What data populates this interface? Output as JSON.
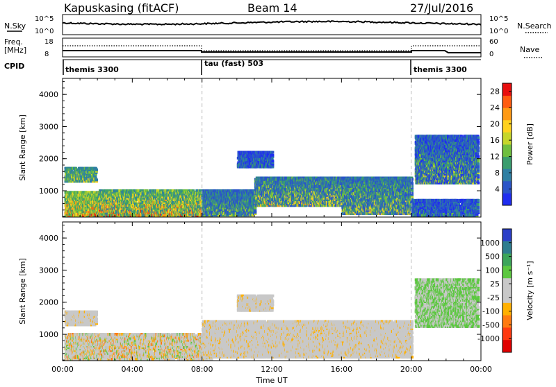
{
  "header": {
    "station": "Kapuskasing (fitACF)",
    "beam": "Beam 14",
    "date": "27/Jul/2016"
  },
  "top_panels": {
    "nsky_label": "N.Sky",
    "nsky_ticks": [
      "10^5",
      "10^0"
    ],
    "nsearch_label": "N.Search",
    "nsearch_ticks": [
      "10^5",
      "10^0"
    ],
    "freq_label_1": "Freq.",
    "freq_label_2": "[MHz]",
    "freq_ticks": [
      "18",
      "8"
    ],
    "nave_label": "Nave",
    "nave_ticks": [
      "60",
      "0"
    ],
    "cpid_label": "CPID",
    "cpid_segments": [
      {
        "label": "themis 3300",
        "start": 0,
        "end": 8
      },
      {
        "label": "tau (fast) 503",
        "start": 8,
        "end": 20
      },
      {
        "label": "themis 3300",
        "start": 20,
        "end": 24
      }
    ]
  },
  "chart_data": [
    {
      "type": "heatmap",
      "name": "power",
      "ylabel": "Slant Range [km]",
      "xlabel": "Time UT",
      "x_ticks": [
        "00:00",
        "04:00",
        "08:00",
        "12:00",
        "16:00",
        "20:00",
        "00:00"
      ],
      "xlim": [
        0,
        24
      ],
      "ylim": [
        180,
        4500
      ],
      "y_ticks": [
        1000,
        2000,
        3000,
        4000
      ],
      "colorbar": {
        "label": "Power [dB]",
        "ticks": [
          4,
          8,
          12,
          16,
          20,
          24,
          28
        ],
        "range": [
          0,
          30
        ],
        "colors": [
          "#1f2df0",
          "#2a55c8",
          "#2f7fa3",
          "#3a9d6e",
          "#6fbf3f",
          "#c6d62b",
          "#ffd21e",
          "#ff9a14",
          "#ff5c10",
          "#e80e0e"
        ]
      },
      "regions": [
        {
          "t0": 0.1,
          "t1": 2.0,
          "r0": 180,
          "r1": 950,
          "lo": 10,
          "hi": 30
        },
        {
          "t0": 0.1,
          "t1": 1.9,
          "r0": 1250,
          "r1": 1700,
          "lo": 6,
          "hi": 22
        },
        {
          "t0": 2.0,
          "t1": 8.5,
          "r0": 180,
          "r1": 1000,
          "lo": 8,
          "hi": 30
        },
        {
          "t0": 8.0,
          "t1": 11.0,
          "r0": 200,
          "r1": 1000,
          "lo": 4,
          "hi": 18
        },
        {
          "t0": 11.0,
          "t1": 16.0,
          "r0": 500,
          "r1": 1400,
          "lo": 4,
          "hi": 24
        },
        {
          "t0": 16.0,
          "t1": 20.0,
          "r0": 250,
          "r1": 1400,
          "lo": 4,
          "hi": 22
        },
        {
          "t0": 10.0,
          "t1": 12.0,
          "r0": 1700,
          "r1": 2200,
          "lo": 2,
          "hi": 12
        },
        {
          "t0": 20.2,
          "t1": 23.8,
          "r0": 1200,
          "r1": 2700,
          "lo": 2,
          "hi": 20
        },
        {
          "t0": 20.0,
          "t1": 23.8,
          "r0": 180,
          "r1": 700,
          "lo": 2,
          "hi": 14
        }
      ]
    },
    {
      "type": "heatmap",
      "name": "velocity",
      "ylabel": "Slant Range [km]",
      "xlabel": "Time UT",
      "x_ticks": [
        "00:00",
        "04:00",
        "08:00",
        "12:00",
        "16:00",
        "20:00",
        "00:00"
      ],
      "xlim": [
        0,
        24
      ],
      "ylim": [
        180,
        4500
      ],
      "y_ticks": [
        1000,
        2000,
        3000,
        4000
      ],
      "colorbar": {
        "label": "Velocity [m s⁻¹]",
        "ticks": [
          "1000",
          "500",
          "100",
          "25",
          "-25",
          "-100",
          "-500",
          "-1000"
        ],
        "colors": [
          "#2b3fc8",
          "#2e7d8f",
          "#3ca55a",
          "#5cc840",
          "#c8c8c8",
          "#c8c8c8",
          "#ffb000",
          "#ff7a10",
          "#ff3a10",
          "#e00000"
        ]
      },
      "regions": [
        {
          "t0": 0.1,
          "t1": 8.5,
          "r0": 180,
          "r1": 1000,
          "v": "mixed"
        },
        {
          "t0": 0.1,
          "t1": 1.9,
          "r0": 1250,
          "r1": 1700,
          "v": "grey"
        },
        {
          "t0": 8.0,
          "t1": 20.0,
          "r0": 250,
          "r1": 1400,
          "v": "grey"
        },
        {
          "t0": 10.0,
          "t1": 12.0,
          "r0": 1700,
          "r1": 2200,
          "v": "grey"
        },
        {
          "t0": 20.2,
          "t1": 23.8,
          "r0": 1200,
          "r1": 2700,
          "v": "green-grey"
        }
      ]
    }
  ]
}
